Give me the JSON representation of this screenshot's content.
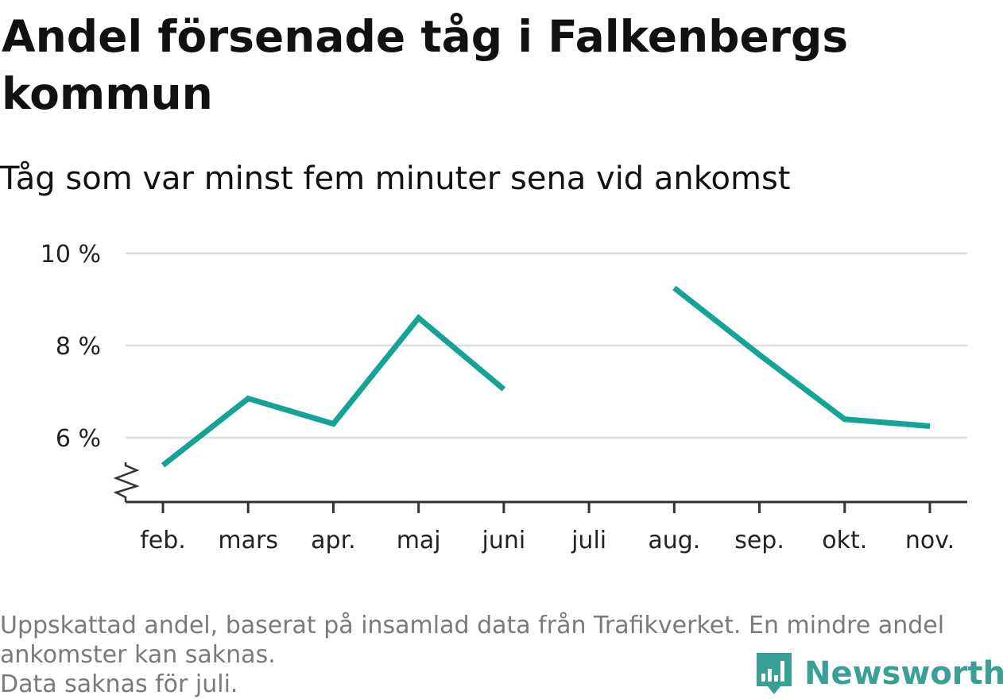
{
  "header": {
    "title": "Andel försenade tåg i Falkenbergs kommun",
    "subtitle": "Tåg som var minst fem minuter sena vid ankomst"
  },
  "chart_data": {
    "type": "line",
    "categories": [
      "feb.",
      "mars",
      "apr.",
      "maj",
      "juni",
      "juli",
      "aug.",
      "sep.",
      "okt.",
      "nov."
    ],
    "series": [
      {
        "values": [
          5.4,
          6.85,
          6.3,
          8.6,
          7.05,
          null,
          9.25,
          7.8,
          6.4,
          6.25
        ]
      }
    ],
    "y_ticks": [
      6,
      8,
      10
    ],
    "y_tick_labels": [
      "6 %",
      "8 %",
      "10 %"
    ],
    "ylim": [
      4.6,
      10
    ],
    "y_axis_break": true,
    "grid": true,
    "line_color": "#15a396"
  },
  "footer": {
    "note_line1": "Uppskattad andel, baserat på insamlad data från Trafikverket. En mindre andel",
    "note_line2": "ankomster kan saknas.",
    "note_line3": "Data saknas för juli.",
    "brand": "Newsworthy",
    "brand_color": "#3a9f95",
    "brand_icon": "bar-chart-speech-bubble-icon"
  }
}
